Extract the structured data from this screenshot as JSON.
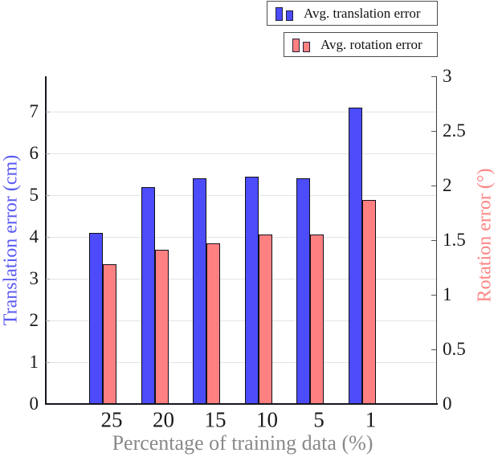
{
  "chart_data": {
    "type": "bar",
    "categories": [
      "25",
      "20",
      "15",
      "10",
      "5",
      "1"
    ],
    "series": [
      {
        "name": "Avg. translation error",
        "axis": "left",
        "color": "#4c4cfa",
        "values": [
          4.1,
          5.2,
          5.4,
          5.45,
          5.4,
          7.1
        ]
      },
      {
        "name": "Avg. rotation error",
        "axis": "right",
        "color": "#ff8080",
        "values": [
          1.28,
          1.41,
          1.47,
          1.55,
          1.55,
          1.87
        ]
      }
    ],
    "xlabel": "Percentage of training data (%)",
    "ylabel_left": "Translation error (cm)",
    "ylabel_right": "Rotation error (°)",
    "ylim_left": [
      0,
      7.85
    ],
    "ylim_right": [
      0,
      3
    ],
    "yticks_left": [
      "0",
      "1",
      "2",
      "3",
      "4",
      "5",
      "6",
      "7"
    ],
    "yticks_right": [
      "0",
      "0.5",
      "1",
      "1.5",
      "2",
      "2.5",
      "3"
    ],
    "grid": "horizontal",
    "legend_position": "top-right-outside"
  },
  "colors": {
    "translation_bar": "#4c4cfa",
    "rotation_bar": "#ff8080",
    "ylabel_left": "#5a5af2",
    "ylabel_right": "#ff8585",
    "xlabel": "#898989",
    "gridline": "#e4e4e4",
    "axis_dark": "#16161d",
    "axis_right": "#3d3d3d"
  }
}
